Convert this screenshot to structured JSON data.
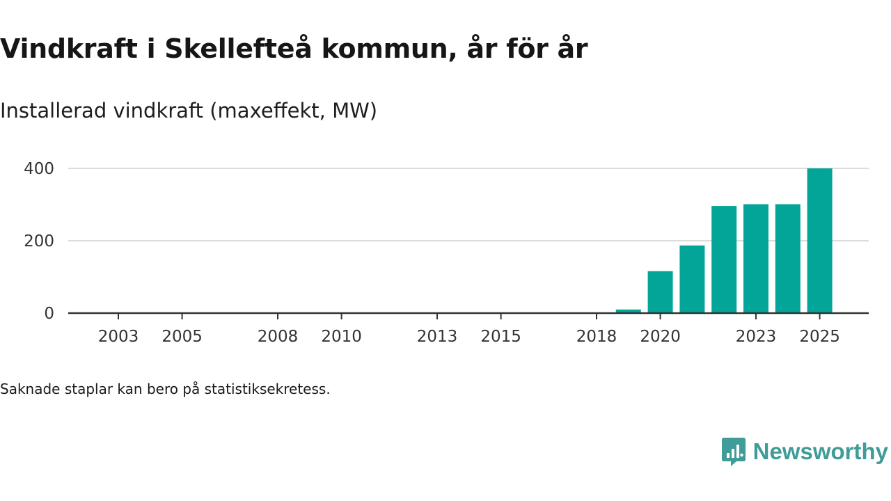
{
  "header": {
    "title": "Vindkraft i Skellefteå kommun, år för år",
    "subtitle": "Installerad vindkraft (maxeffekt, MW)"
  },
  "footnote": "Saknade staplar kan bero på statistiksekretess.",
  "brand": {
    "name": "Newsworthy",
    "icon": "newsworthy-logo-icon"
  },
  "colors": {
    "bar": "#02a597",
    "grid": "#dcdcdc",
    "axis": "#333333",
    "brand": "#3f9c98"
  },
  "chart_data": {
    "type": "bar",
    "title": "Vindkraft i Skellefteå kommun, år för år",
    "ylabel": "Installerad vindkraft (maxeffekt, MW)",
    "xlabel": "",
    "categories": [
      "2003",
      "2004",
      "2005",
      "2006",
      "2007",
      "2008",
      "2009",
      "2010",
      "2011",
      "2012",
      "2013",
      "2014",
      "2015",
      "2016",
      "2017",
      "2018",
      "2019",
      "2020",
      "2021",
      "2022",
      "2023",
      "2024",
      "2025"
    ],
    "values": [
      0,
      0,
      0,
      0,
      0,
      0,
      0,
      0,
      0,
      0,
      0,
      0,
      0,
      0,
      0,
      0,
      10,
      116,
      187,
      296,
      301,
      301,
      400
    ],
    "x_tick_labels": [
      "2003",
      "2005",
      "2008",
      "2010",
      "2013",
      "2015",
      "2018",
      "2020",
      "2023",
      "2025"
    ],
    "y_ticks": [
      0,
      200,
      400
    ],
    "ylim": [
      0,
      400
    ],
    "grid": true,
    "legend": "none"
  }
}
